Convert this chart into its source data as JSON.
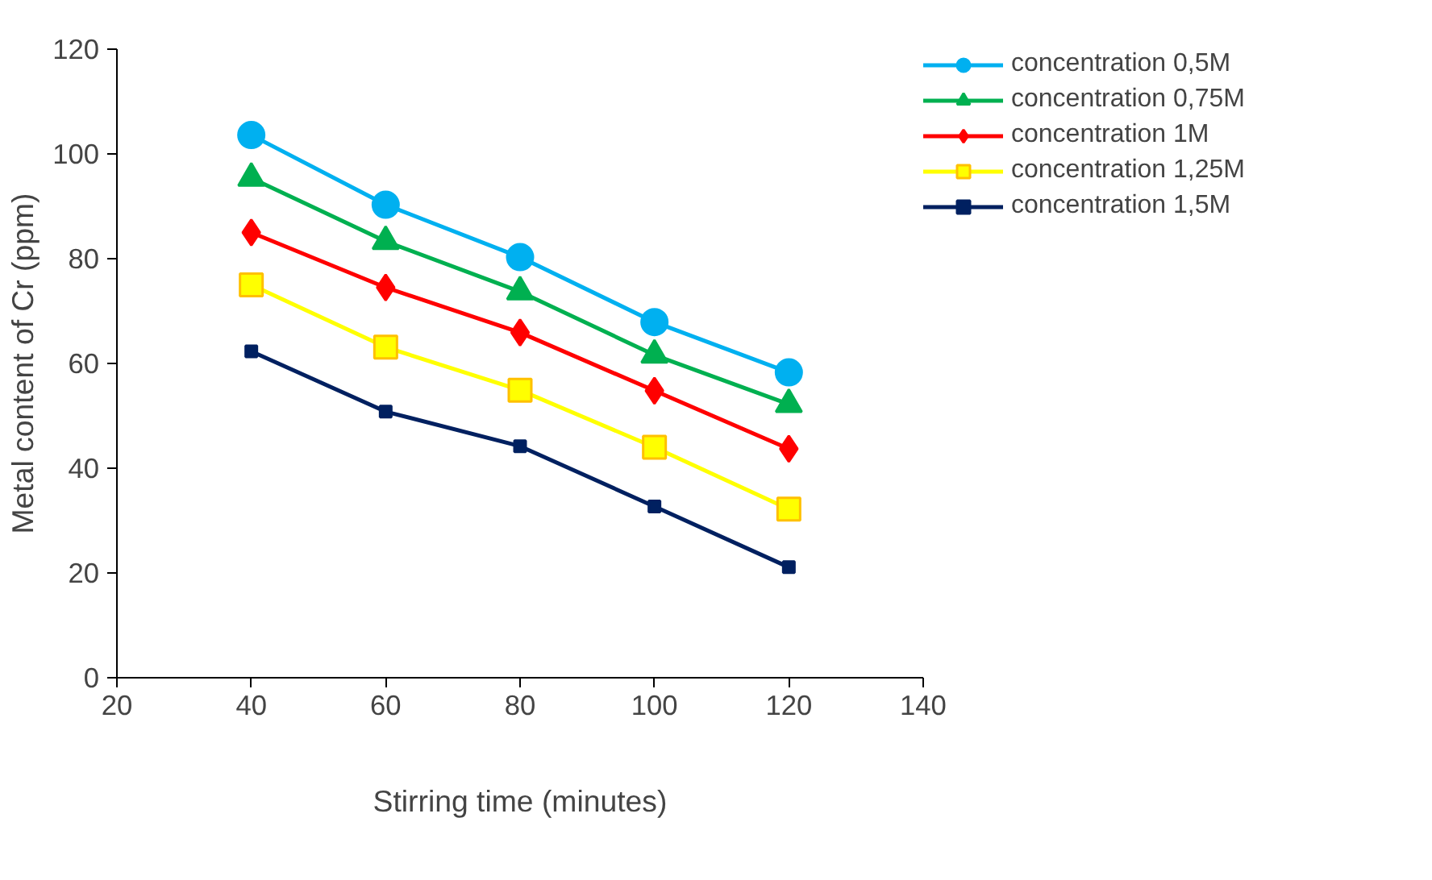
{
  "chart_data": {
    "type": "line",
    "xlabel": "Stirring time (minutes)",
    "ylabel": "Metal content of Cr (ppm)",
    "x": [
      40,
      60,
      80,
      100,
      120
    ],
    "xlim": [
      20,
      140
    ],
    "xticks": [
      20,
      40,
      60,
      80,
      100,
      120,
      140
    ],
    "ylim": [
      0,
      120
    ],
    "yticks": [
      0,
      20,
      40,
      60,
      80,
      100,
      120
    ],
    "grid": false,
    "legend": "top right",
    "series": [
      {
        "name": "concentration 0,5M",
        "color": "#00b0f0",
        "marker": "circle",
        "values": [
          103.6,
          90.3,
          80.3,
          67.9,
          58.3
        ]
      },
      {
        "name": "concentration 0,75M",
        "color": "#00b050",
        "marker": "triangle",
        "values": [
          95.4,
          83.3,
          73.7,
          61.6,
          52.2
        ]
      },
      {
        "name": "concentration 1M",
        "color": "#ff0000",
        "marker": "diamond",
        "values": [
          85.0,
          74.5,
          65.9,
          54.8,
          43.7
        ]
      },
      {
        "name": "concentration 1,25M",
        "color": "#ffff00",
        "marker": "square",
        "values": [
          75.0,
          63.1,
          54.9,
          44.0,
          32.2
        ]
      },
      {
        "name": "concentration 1,5M",
        "color": "#002060",
        "marker": "square",
        "values": [
          62.3,
          50.8,
          44.2,
          32.7,
          21.1
        ]
      }
    ]
  }
}
